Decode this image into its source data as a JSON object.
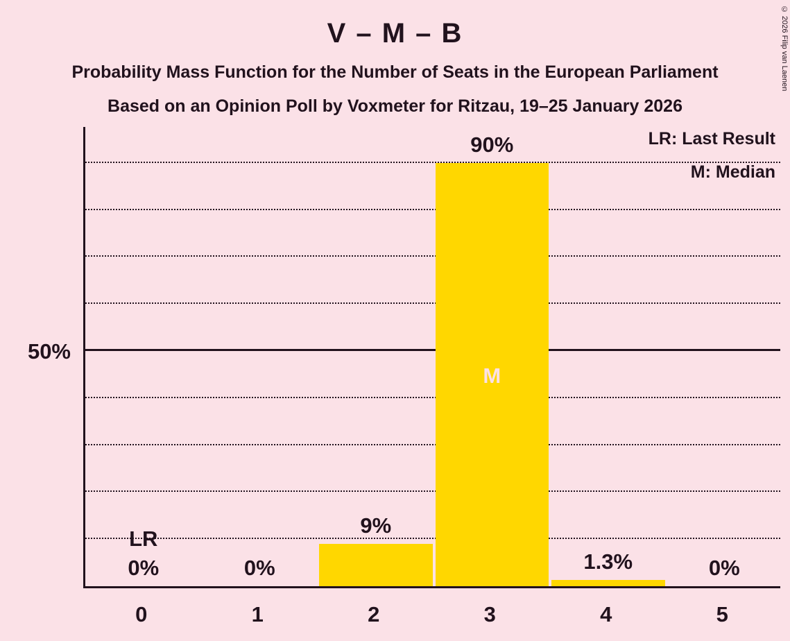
{
  "page": {
    "background": "#fbe1e7",
    "text_color": "#21121d",
    "accent_bar_color": "#ffd700"
  },
  "header": {
    "title": "V – M – B",
    "subtitle1": "Probability Mass Function for the Number of Seats in the European Parliament",
    "subtitle2": "Based on an Opinion Poll by Voxmeter for Ritzau, 19–25 January 2026"
  },
  "legend": {
    "lr": "LR: Last Result",
    "m": "M: Median"
  },
  "copyright": "© 2026 Filip van Laenen",
  "chart_data": {
    "type": "bar",
    "categories": [
      "0",
      "1",
      "2",
      "3",
      "4",
      "5"
    ],
    "values": [
      0,
      0,
      9,
      90,
      1.3,
      0
    ],
    "labels": [
      "0%",
      "0%",
      "9%",
      "90%",
      "1.3%",
      "0%"
    ],
    "title": "V – M – B",
    "xlabel": "",
    "ylabel": "",
    "ylim": [
      0,
      100
    ],
    "y_axis_label": "50%",
    "solid_gridline": 50,
    "dotted_gridlines": [
      10,
      20,
      30,
      40,
      60,
      70,
      80,
      90
    ],
    "last_result_index": 0,
    "last_result_label": "LR",
    "median_index": 3,
    "median_label": "M",
    "bar_color": "#ffd700",
    "grid": true,
    "legend_position": "top-right"
  }
}
